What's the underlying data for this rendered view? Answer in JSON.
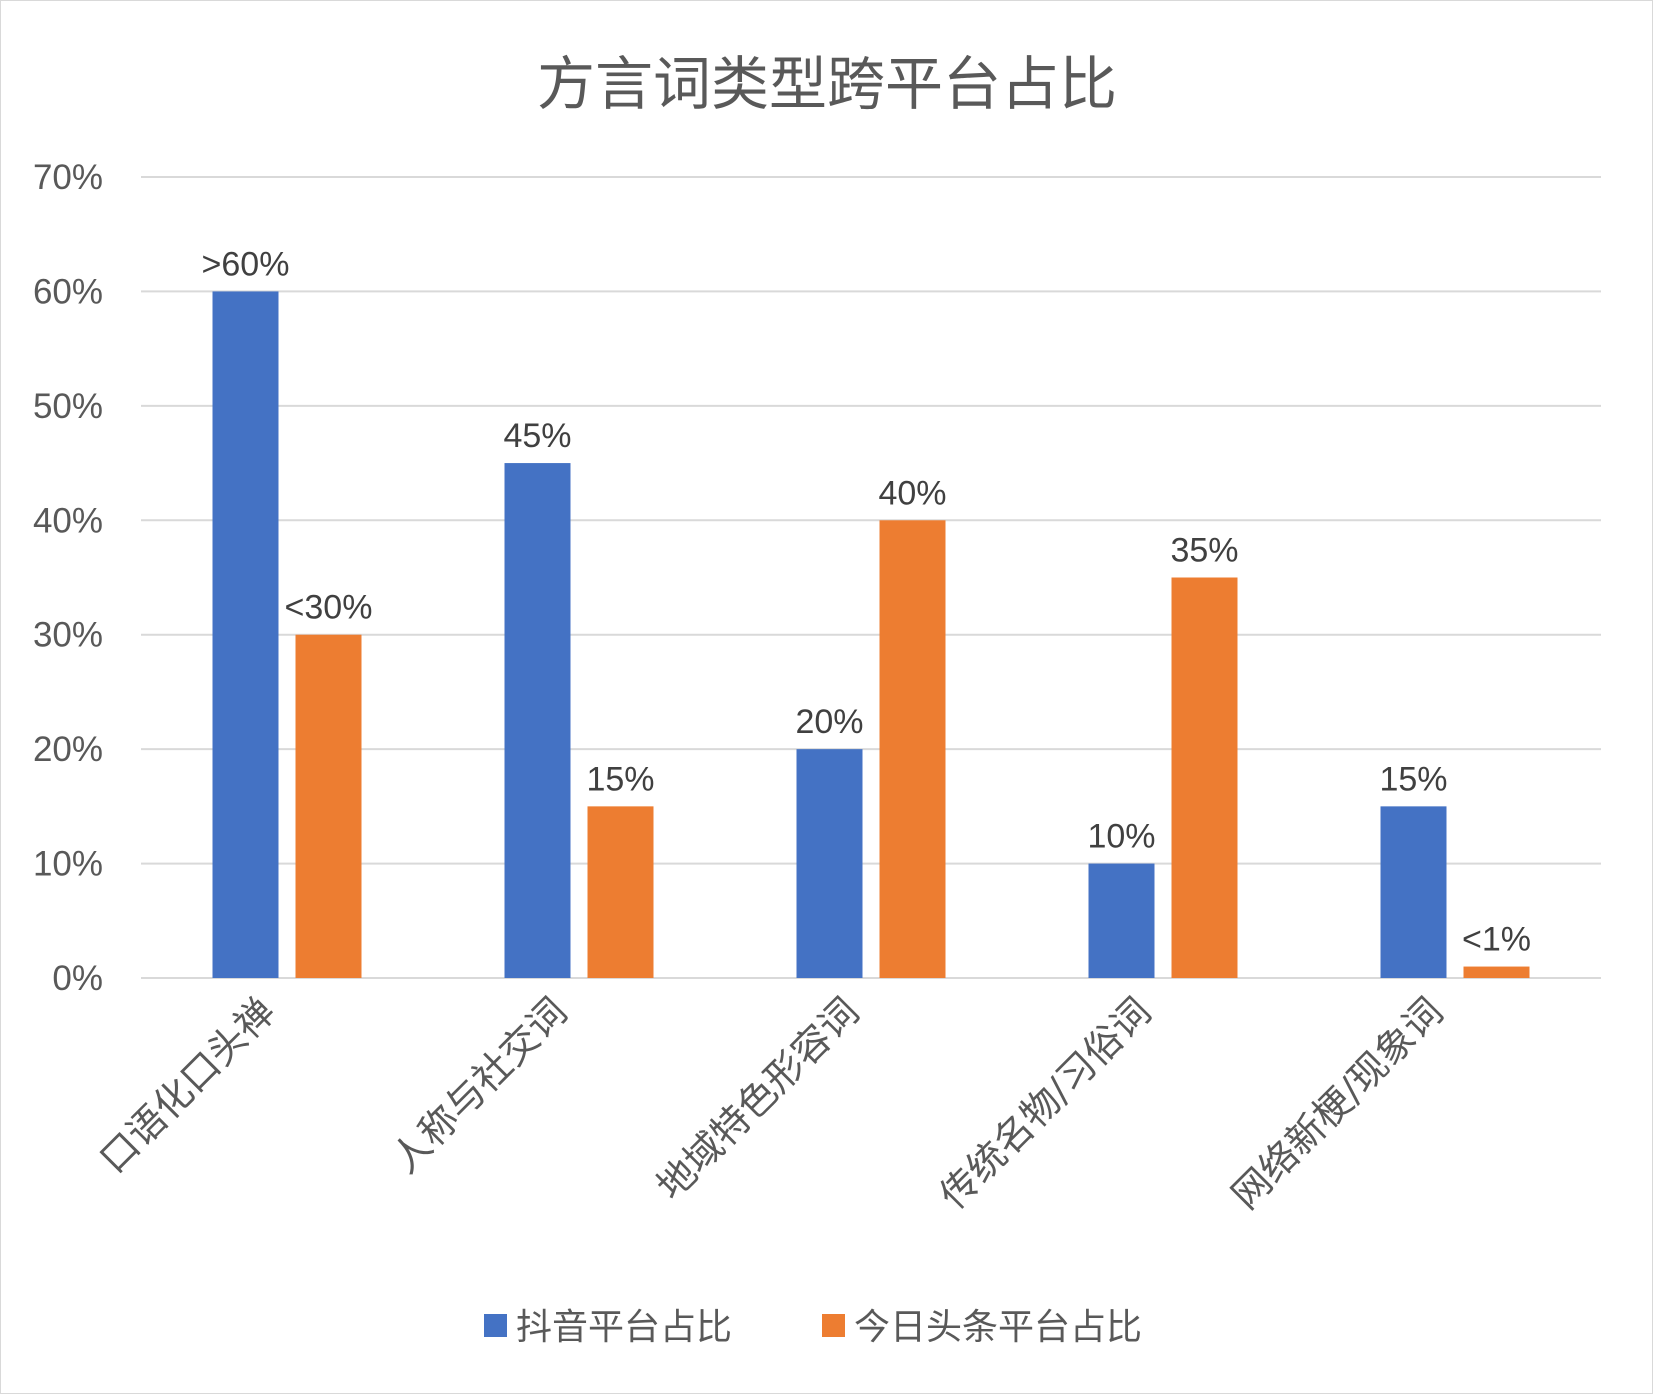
{
  "chart_data": {
    "type": "bar",
    "title": "方言词类型跨平台占比",
    "categories": [
      "口语化口头禅",
      "人称与社交词",
      "地域特色形容词",
      "传统名物/习俗词",
      "网络新梗/现象词"
    ],
    "series": [
      {
        "name": "抖音平台占比",
        "color": "#4472C4",
        "values": [
          60,
          45,
          20,
          10,
          15
        ],
        "labels": [
          ">60%",
          "45%",
          "20%",
          "10%",
          "15%"
        ]
      },
      {
        "name": "今日头条平台占比",
        "color": "#ED7D31",
        "values": [
          30,
          15,
          40,
          35,
          1
        ],
        "labels": [
          "<30%",
          "15%",
          "40%",
          "35%",
          "<1%"
        ]
      }
    ],
    "ylim": [
      0,
      70
    ],
    "yticks": [
      "0%",
      "10%",
      "20%",
      "30%",
      "40%",
      "50%",
      "60%",
      "70%"
    ],
    "grid": true,
    "legend": "bottom"
  }
}
